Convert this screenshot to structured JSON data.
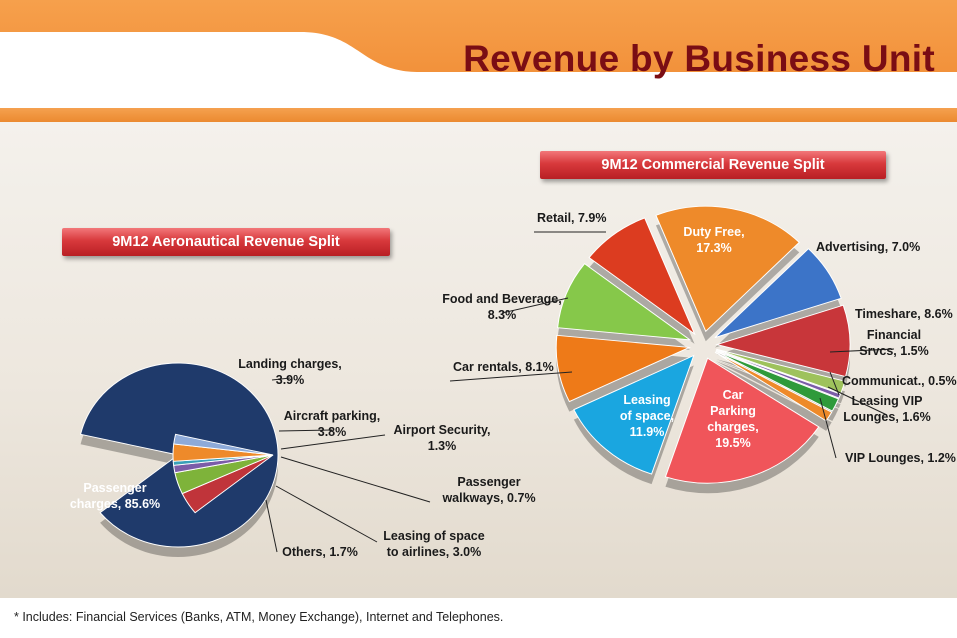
{
  "page": {
    "title": "Revenue by Business Unit"
  },
  "footnote": {
    "text": "* Includes: Financial Services (Banks, ATM, Money Exchange), Internet and Telephones."
  },
  "chart_data": [
    {
      "type": "pie",
      "title": "9M12 Aeronautical Revenue Split",
      "slices": [
        {
          "label": "Passenger charges",
          "value": 85.6,
          "color": "#1f3a6b",
          "text": "Passenger charges, 85.6%"
        },
        {
          "label": "Landing charges",
          "value": 3.9,
          "color": "#c0343a",
          "text": "Landing charges, 3.9%"
        },
        {
          "label": "Aircraft parking",
          "value": 3.8,
          "color": "#7eb33a",
          "text": "Aircraft parking, 3.8%"
        },
        {
          "label": "Airport Security",
          "value": 1.3,
          "color": "#7b5ca8",
          "text": "Airport Security, 1.3%"
        },
        {
          "label": "Passenger walkways",
          "value": 0.7,
          "color": "#3aa0b8",
          "text": "Passenger walkways, 0.7%"
        },
        {
          "label": "Leasing of space to airlines",
          "value": 3.0,
          "color": "#ee8a2a",
          "text": "Leasing of space to airlines, 3.0%"
        },
        {
          "label": "Others",
          "value": 1.7,
          "color": "#8eaad8",
          "text": "Others, 1.7%"
        }
      ]
    },
    {
      "type": "pie",
      "title": "9M12 Commercial Revenue Split",
      "slices": [
        {
          "label": "Duty Free",
          "value": 17.3,
          "color": "#ee8a2a",
          "text": "Duty Free, 17.3%"
        },
        {
          "label": "Advertising",
          "value": 7.0,
          "color": "#3c74c8",
          "text": "Advertising, 7.0%"
        },
        {
          "label": "Timeshare",
          "value": 8.6,
          "color": "#c8363a",
          "text": "Timeshare, 8.6%"
        },
        {
          "label": "Financial Srvcs",
          "value": 1.5,
          "color": "#9ec25c",
          "text": "Financial Srvcs, 1.5%"
        },
        {
          "label": "Communicat.",
          "value": 0.5,
          "color": "#7b5ca8",
          "text": "Communicat., 0.5%"
        },
        {
          "label": "Leasing VIP Lounges",
          "value": 1.6,
          "color": "#2f9a3a",
          "text": "Leasing VIP Lounges, 1.6%"
        },
        {
          "label": "VIP Lounges",
          "value": 1.2,
          "color": "#ee8a2a",
          "text": "VIP Lounges, 1.2%"
        },
        {
          "label": "Car Parking charges",
          "value": 19.5,
          "color": "#f0555a",
          "text": "Car Parking charges, 19.5%"
        },
        {
          "label": "Leasing of space",
          "value": 11.9,
          "color": "#1aa6e0",
          "text": "Leasing of space, 11.9%"
        },
        {
          "label": "Car rentals",
          "value": 8.1,
          "color": "#ee7a18",
          "text": "Car rentals, 8.1%"
        },
        {
          "label": "Food and Beverage",
          "value": 8.3,
          "color": "#86c84a",
          "text": "Food and Beverage, 8.3%"
        },
        {
          "label": "Retail",
          "value": 7.9,
          "color": "#dc3c20",
          "text": "Retail, 7.9%"
        }
      ]
    }
  ]
}
